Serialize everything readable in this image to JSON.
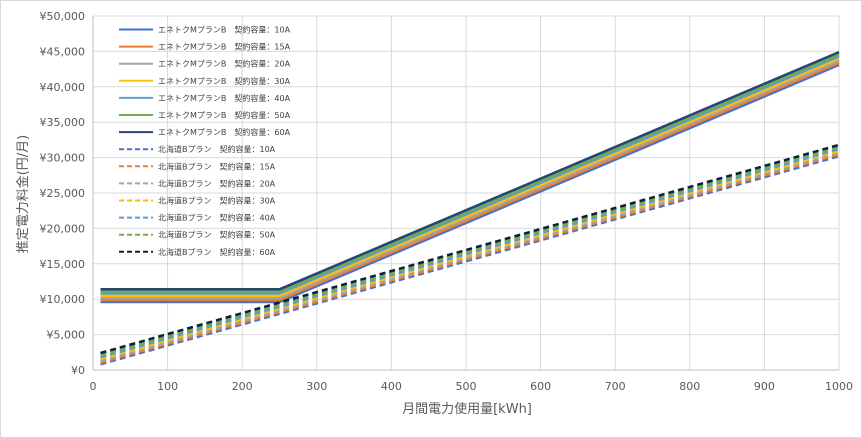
{
  "chart_data": {
    "type": "line",
    "title": "",
    "xlabel": "月間電力使用量[kWh]",
    "ylabel": "推定電力料金(円/月)",
    "xlim": [
      0,
      1000
    ],
    "ylim": [
      0,
      50000
    ],
    "x_ticks": [
      "0",
      "100",
      "200",
      "300",
      "400",
      "500",
      "600",
      "700",
      "800",
      "900",
      "1000"
    ],
    "y_ticks": [
      "¥0",
      "¥5,000",
      "¥10,000",
      "¥15,000",
      "¥20,000",
      "¥25,000",
      "¥30,000",
      "¥35,000",
      "¥40,000",
      "¥45,000",
      "¥50,000"
    ],
    "grid": true,
    "legend_position": "top-left",
    "series": [
      {
        "name": "エネトクMプランB　契約容量：10A",
        "color": "#4472C4",
        "dash": "solid",
        "x": [
          10,
          250,
          1000
        ],
        "values": [
          9600,
          9600,
          43100
        ]
      },
      {
        "name": "エネトクMプランB　契約容量：15A",
        "color": "#ED7D31",
        "dash": "solid",
        "x": [
          10,
          250,
          1000
        ],
        "values": [
          9900,
          9900,
          43400
        ]
      },
      {
        "name": "エネトクMプランB　契約容量：20A",
        "color": "#A5A5A5",
        "dash": "solid",
        "x": [
          10,
          250,
          1000
        ],
        "values": [
          10200,
          10200,
          43700
        ]
      },
      {
        "name": "エネトクMプランB　契約容量：30A",
        "color": "#FFC000",
        "dash": "solid",
        "x": [
          10,
          250,
          1000
        ],
        "values": [
          10500,
          10500,
          44000
        ]
      },
      {
        "name": "エネトクMプランB　契約容量：40A",
        "color": "#5B9BD5",
        "dash": "solid",
        "x": [
          10,
          250,
          1000
        ],
        "values": [
          10800,
          10800,
          44300
        ]
      },
      {
        "name": "エネトクMプランB　契約容量：50A",
        "color": "#70AD47",
        "dash": "solid",
        "x": [
          10,
          250,
          1000
        ],
        "values": [
          11100,
          11100,
          44600
        ]
      },
      {
        "name": "エネトクMプランB　契約容量：60A",
        "color": "#264478",
        "dash": "solid",
        "x": [
          10,
          250,
          1000
        ],
        "values": [
          11400,
          11400,
          44900
        ]
      },
      {
        "name": "北海道Bプラン　契約容量：10A",
        "color": "#4472C4",
        "dash": "dashed",
        "x": [
          10,
          1000
        ],
        "values": [
          800,
          30200
        ]
      },
      {
        "name": "北海道Bプラン　契約容量：15A",
        "color": "#ED7D31",
        "dash": "dashed",
        "x": [
          10,
          1000
        ],
        "values": [
          1050,
          30450
        ]
      },
      {
        "name": "北海道Bプラン　契約容量：20A",
        "color": "#A5A5A5",
        "dash": "dashed",
        "x": [
          10,
          1000
        ],
        "values": [
          1300,
          30700
        ]
      },
      {
        "name": "北海道Bプラン　契約容量：30A",
        "color": "#FFC000",
        "dash": "dashed",
        "x": [
          10,
          1000
        ],
        "values": [
          1550,
          30950
        ]
      },
      {
        "name": "北海道Bプラン　契約容量：40A",
        "color": "#5B9BD5",
        "dash": "dashed",
        "x": [
          10,
          1000
        ],
        "values": [
          1800,
          31200
        ]
      },
      {
        "name": "北海道Bプラン　契約容量：50A",
        "color": "#70AD47",
        "dash": "dashed",
        "x": [
          10,
          1000
        ],
        "values": [
          2100,
          31500
        ]
      },
      {
        "name": "北海道Bプラン　契約容量：60A",
        "color": "#0D1F3C",
        "dash": "dashed",
        "x": [
          10,
          1000
        ],
        "values": [
          2400,
          31800
        ]
      }
    ]
  }
}
